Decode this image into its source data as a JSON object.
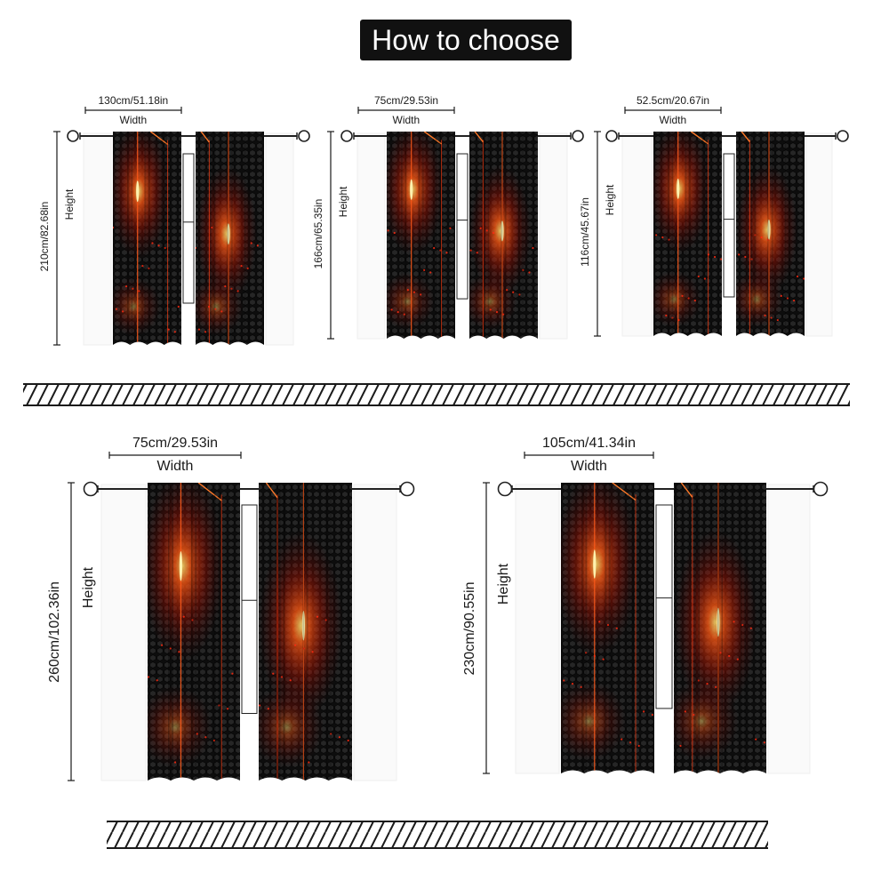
{
  "title": "How to choose",
  "width_label": "Width",
  "height_label": "Height",
  "colors": {
    "background": "#ffffff",
    "badge": "#111111",
    "curtain": "#0c0c0c",
    "glow": "#ff3a12",
    "line": "#1a1a1a"
  },
  "icons": [
    "curtain-rod-ring-icon",
    "curtain-panel-icon",
    "floor-hatch-icon"
  ],
  "options": [
    {
      "width": "130cm/51.18in",
      "height": "210cm/82.68in"
    },
    {
      "width": "75cm/29.53in",
      "height": "166cm/65.35in"
    },
    {
      "width": "52.5cm/20.67in",
      "height": "116cm/45.67in"
    },
    {
      "width": "75cm/29.53in",
      "height": "260cm/102.36in"
    },
    {
      "width": "105cm/41.34in",
      "height": "230cm/90.55in"
    }
  ]
}
